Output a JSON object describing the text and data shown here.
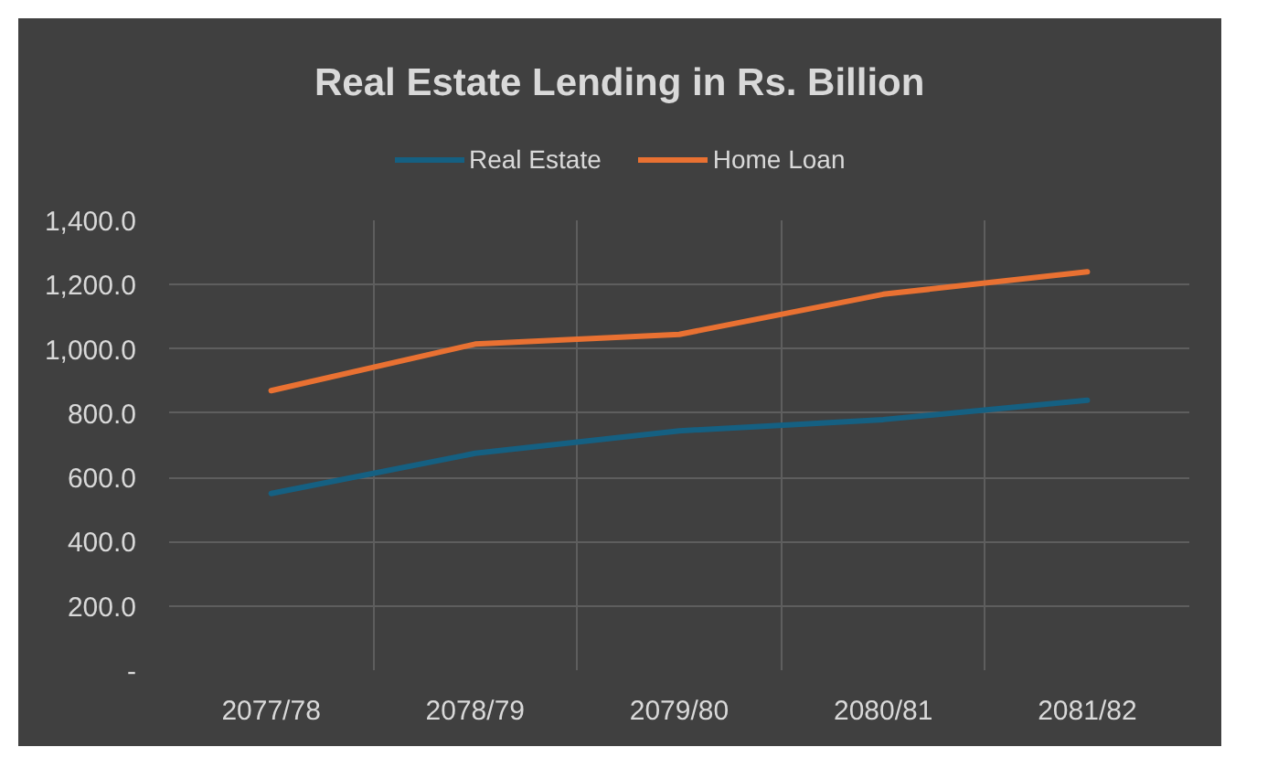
{
  "chart_data": {
    "type": "line",
    "title": "Real Estate Lending in Rs. Billion",
    "categories": [
      "2077/78",
      "2078/79",
      "2079/80",
      "2080/81",
      "2081/82"
    ],
    "series": [
      {
        "name": "Real Estate",
        "color": "#156082",
        "values": [
          550,
          675,
          745,
          780,
          840
        ]
      },
      {
        "name": "Home Loan",
        "color": "#e97132",
        "values": [
          870,
          1015,
          1045,
          1170,
          1240
        ]
      }
    ],
    "ylim": [
      0,
      1400
    ],
    "yticks": [
      {
        "value": 0,
        "label": "-"
      },
      {
        "value": 200,
        "label": "200.0"
      },
      {
        "value": 400,
        "label": "400.0"
      },
      {
        "value": 600,
        "label": "600.0"
      },
      {
        "value": 800,
        "label": "800.0"
      },
      {
        "value": 1000,
        "label": "1,000.0"
      },
      {
        "value": 1200,
        "label": "1,200.0"
      },
      {
        "value": 1400,
        "label": "1,400.0"
      }
    ],
    "grid": true,
    "legend": "top"
  }
}
